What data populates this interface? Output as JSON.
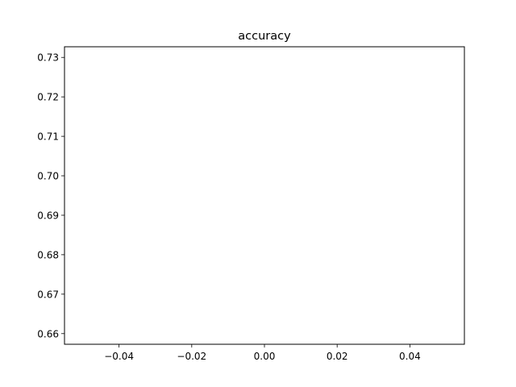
{
  "chart_data": {
    "type": "line",
    "title": "accuracy",
    "xlabel": "",
    "ylabel": "",
    "x_ticks": [
      "-0.04",
      "-0.02",
      "0.00",
      "0.02",
      "0.04"
    ],
    "y_ticks": [
      "0.66",
      "0.67",
      "0.68",
      "0.69",
      "0.70",
      "0.71",
      "0.72",
      "0.73"
    ],
    "xlim": [
      -0.055,
      0.055
    ],
    "ylim": [
      0.6573,
      0.7327
    ],
    "grid": false,
    "series": []
  }
}
